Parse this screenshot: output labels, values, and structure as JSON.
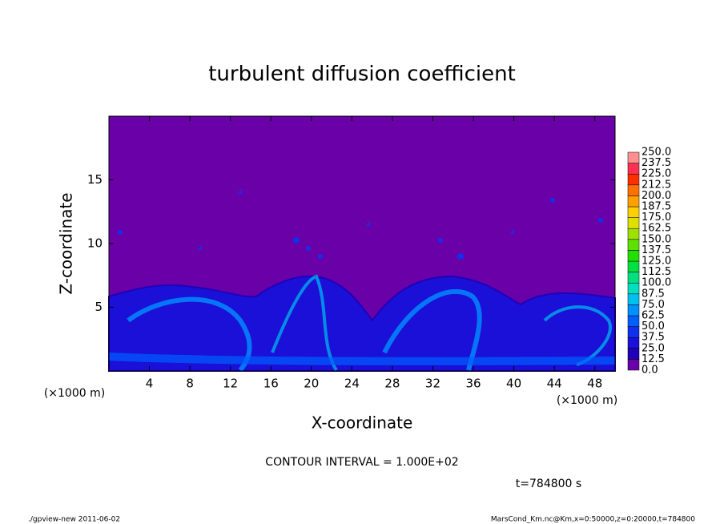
{
  "chart_data": {
    "type": "contour",
    "title": "turbulent diffusion coefficient",
    "xlabel": "X-coordinate",
    "ylabel": "Z-coordinate",
    "x_unit": "(×1000 m)",
    "y_unit": "(×1000 m)",
    "xlim": [
      0,
      50
    ],
    "xticks": [
      4,
      8,
      12,
      16,
      20,
      24,
      28,
      32,
      36,
      40,
      44,
      48
    ],
    "ylim": [
      0,
      20
    ],
    "yticks": [
      5,
      10,
      15
    ],
    "colorbar": {
      "levels": [
        {
          "value": 0,
          "label": "0.0"
        },
        {
          "value": 12.5,
          "label": "12.5"
        },
        {
          "value": 25,
          "label": "25.0"
        },
        {
          "value": 37.5,
          "label": "37.5"
        },
        {
          "value": 50,
          "label": "50.0"
        },
        {
          "value": 62.5,
          "label": "62.5"
        },
        {
          "value": 75,
          "label": "75.0"
        },
        {
          "value": 87.5,
          "label": "87.5"
        },
        {
          "value": 100,
          "label": "100.0"
        },
        {
          "value": 112.5,
          "label": "112.5"
        },
        {
          "value": 125,
          "label": "125.0"
        },
        {
          "value": 137.5,
          "label": "137.5"
        },
        {
          "value": 150,
          "label": "150.0"
        },
        {
          "value": 162.5,
          "label": "162.5"
        },
        {
          "value": 175,
          "label": "175.0"
        },
        {
          "value": 187.5,
          "label": "187.5"
        },
        {
          "value": 200,
          "label": "200.0"
        },
        {
          "value": 212.5,
          "label": "212.5"
        },
        {
          "value": 225,
          "label": "225.0"
        },
        {
          "value": 237.5,
          "label": "237.5"
        },
        {
          "value": 250,
          "label": "250.0"
        }
      ],
      "colors": [
        "#6a00a8",
        "#2000b8",
        "#1a10d8",
        "#1030f0",
        "#0060ff",
        "#0090ff",
        "#00c0f0",
        "#00e0c0",
        "#00e080",
        "#00e040",
        "#20e000",
        "#60e000",
        "#a0e000",
        "#e0e000",
        "#ffd000",
        "#ffa000",
        "#ff7000",
        "#ff3000",
        "#ff3050",
        "#ff9090"
      ]
    },
    "contour_interval": "CONTOUR INTERVAL = 1.000E+02",
    "time_label": "t=784800 s",
    "footer_left": "./gpview-new  2011-06-02",
    "footer_right": "MarsCond_Km.nc@Km,x=0:50000,z=0:20000,t=784800"
  }
}
